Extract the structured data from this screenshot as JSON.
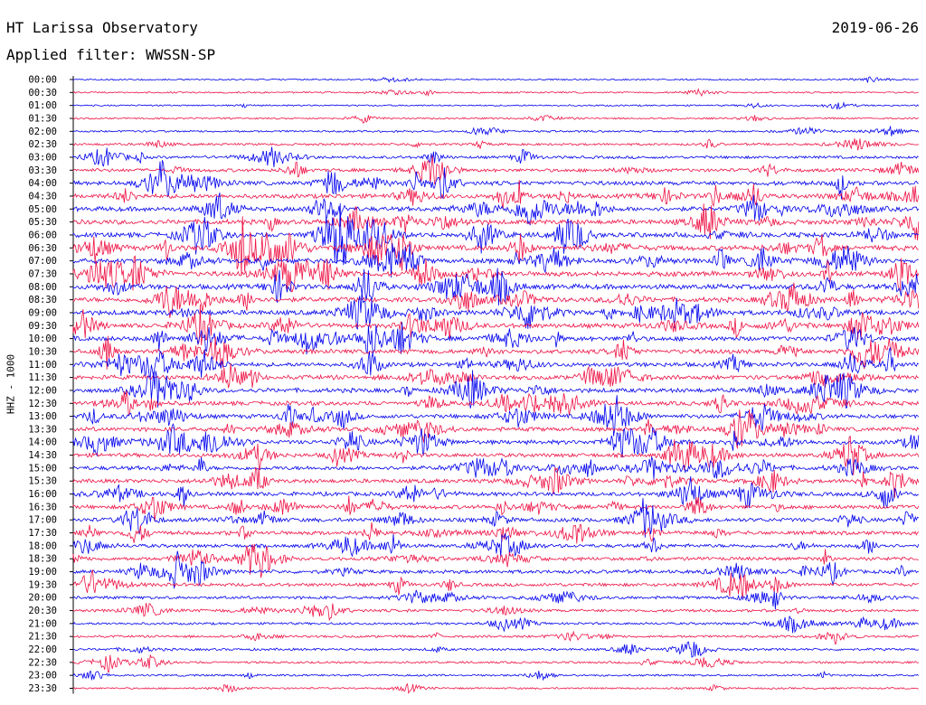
{
  "header": {
    "title": "HT Larissa Observatory",
    "date": "2019-06-26",
    "filter": "Applied filter: WWSSN-SP"
  },
  "chart_data": {
    "type": "line",
    "ylabel": "HHZ - 1000",
    "y_tick_labels": [
      "00:00",
      "00:30",
      "01:00",
      "01:30",
      "02:00",
      "02:30",
      "03:00",
      "03:30",
      "04:00",
      "04:30",
      "05:00",
      "05:30",
      "06:00",
      "06:30",
      "07:00",
      "07:30",
      "08:00",
      "08:30",
      "09:00",
      "09:30",
      "10:00",
      "10:30",
      "11:00",
      "11:30",
      "12:00",
      "12:30",
      "13:00",
      "13:30",
      "14:00",
      "14:30",
      "15:00",
      "15:30",
      "16:00",
      "16:30",
      "17:00",
      "17:30",
      "18:00",
      "18:30",
      "19:00",
      "19:30",
      "20:00",
      "20:30",
      "21:00",
      "21:30",
      "22:00",
      "22:30",
      "23:00",
      "23:30"
    ],
    "trace_colors": [
      "#0000ee",
      "#ee1144"
    ],
    "activity": [
      0.08,
      0.1,
      0.09,
      0.12,
      0.2,
      0.28,
      0.4,
      0.55,
      0.75,
      0.8,
      0.85,
      0.9,
      0.95,
      0.95,
      0.95,
      0.9,
      0.95,
      0.9,
      0.9,
      0.85,
      0.85,
      0.8,
      0.8,
      0.8,
      0.8,
      0.75,
      0.75,
      0.75,
      0.75,
      0.7,
      0.7,
      0.7,
      0.7,
      0.7,
      0.7,
      0.65,
      0.6,
      0.6,
      0.6,
      0.55,
      0.45,
      0.4,
      0.3,
      0.3,
      0.3,
      0.25,
      0.2,
      0.15
    ]
  }
}
